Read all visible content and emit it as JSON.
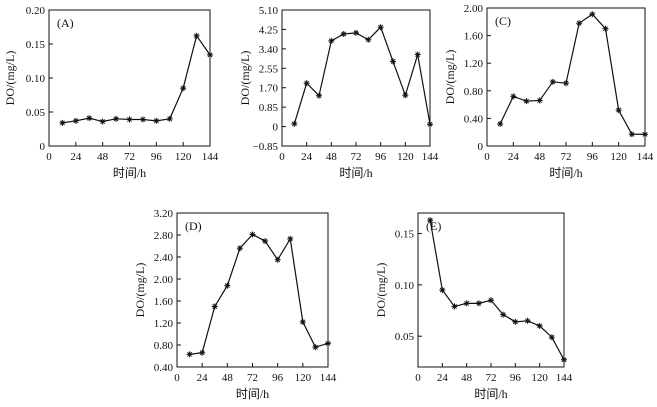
{
  "chart_data": [
    {
      "type": "line",
      "panel": "(A)",
      "xlabel": "时间/h",
      "ylabel": "DO/(mg/L)",
      "xlim": [
        0,
        144
      ],
      "ylim": [
        0,
        0.2
      ],
      "xticks": [
        "0",
        "24",
        "48",
        "72",
        "96",
        "120",
        "144"
      ],
      "yticks": [
        "0",
        "0.05",
        "0.10",
        "0.15",
        "0.20"
      ],
      "x": [
        12,
        24,
        36,
        48,
        60,
        72,
        84,
        96,
        108,
        120,
        132,
        144
      ],
      "values": [
        0.034,
        0.037,
        0.041,
        0.036,
        0.04,
        0.039,
        0.039,
        0.037,
        0.04,
        0.085,
        0.162,
        0.134
      ]
    },
    {
      "type": "line",
      "panel": "",
      "xlabel": "时间/h",
      "ylabel": "DO/(mg/L)",
      "xlim": [
        0,
        144
      ],
      "ylim": [
        -0.85,
        5.1
      ],
      "xticks": [
        "0",
        "24",
        "48",
        "72",
        "96",
        "120",
        "144"
      ],
      "yticks": [
        "−0.85",
        "0",
        "0.85",
        "1.70",
        "2.55",
        "3.40",
        "4.25",
        "5.10"
      ],
      "x": [
        12,
        24,
        36,
        48,
        60,
        72,
        84,
        96,
        108,
        120,
        132,
        144
      ],
      "values": [
        0.12,
        1.9,
        1.35,
        3.75,
        4.05,
        4.1,
        3.8,
        4.35,
        2.85,
        1.37,
        3.15,
        0.1
      ]
    },
    {
      "type": "line",
      "panel": "(C)",
      "xlabel": "时间/h",
      "ylabel": "DO/(mg/L)",
      "xlim": [
        0,
        144
      ],
      "ylim": [
        0,
        2.0
      ],
      "xticks": [
        "0",
        "24",
        "48",
        "72",
        "96",
        "120",
        "144"
      ],
      "yticks": [
        "0",
        "0.40",
        "0.80",
        "1.20",
        "1.60",
        "2.00"
      ],
      "x": [
        12,
        24,
        36,
        48,
        60,
        72,
        84,
        96,
        108,
        120,
        132,
        144
      ],
      "values": [
        0.32,
        0.72,
        0.65,
        0.66,
        0.93,
        0.91,
        1.78,
        1.91,
        1.7,
        0.52,
        0.17,
        0.17
      ]
    },
    {
      "type": "line",
      "panel": "(D)",
      "xlabel": "时间/h",
      "ylabel": "DO/(mg/L)",
      "xlim": [
        0,
        144
      ],
      "ylim": [
        0.4,
        3.2
      ],
      "xticks": [
        "0",
        "24",
        "48",
        "72",
        "96",
        "120",
        "144"
      ],
      "yticks": [
        "0.40",
        "0.80",
        "1.20",
        "1.60",
        "2.00",
        "2.40",
        "2.80",
        "3.20"
      ],
      "x": [
        12,
        24,
        36,
        48,
        60,
        72,
        84,
        96,
        108,
        120,
        132,
        144
      ],
      "values": [
        0.63,
        0.66,
        1.5,
        1.88,
        2.56,
        2.81,
        2.69,
        2.35,
        2.73,
        1.22,
        0.76,
        0.83
      ]
    },
    {
      "type": "line",
      "panel": "(E)",
      "xlabel": "时间/h",
      "ylabel": "DO/(mg/L)",
      "xlim": [
        0,
        144
      ],
      "ylim": [
        0.02,
        0.17
      ],
      "xticks": [
        "0",
        "24",
        "48",
        "72",
        "96",
        "120",
        "144"
      ],
      "yticks": [
        "0.05",
        "0.10",
        "0.15"
      ],
      "x": [
        12,
        24,
        36,
        48,
        60,
        72,
        84,
        96,
        108,
        120,
        132,
        144
      ],
      "values": [
        0.163,
        0.095,
        0.079,
        0.082,
        0.082,
        0.085,
        0.071,
        0.064,
        0.065,
        0.06,
        0.049,
        0.027
      ]
    }
  ]
}
